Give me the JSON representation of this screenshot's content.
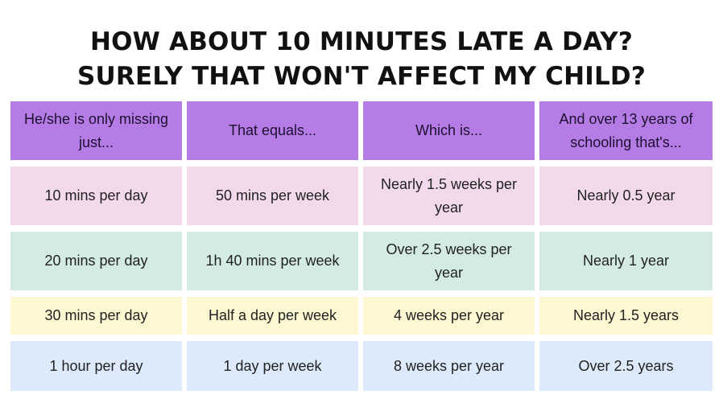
{
  "title": {
    "line1": "HOW ABOUT 10 MINUTES LATE A DAY?",
    "line2": "SURELY THAT WON'T AFFECT MY CHILD?"
  },
  "table": {
    "headers": [
      "He/she is only missing just...",
      "That equals...",
      "Which is...",
      "And over 13 years of schooling that's..."
    ],
    "rows": [
      [
        "10 mins per day",
        "50 mins per week",
        "Nearly 1.5 weeks per year",
        "Nearly 0.5 year"
      ],
      [
        "20 mins per day",
        "1h 40 mins per week",
        "Over 2.5 weeks per year",
        "Nearly 1 year"
      ],
      [
        "30 mins per day",
        "Half a day per week",
        "4 weeks per year",
        "Nearly 1.5 years"
      ],
      [
        "1 hour per day",
        "1 day per week",
        "8 weeks per year",
        "Over 2.5 years"
      ]
    ]
  },
  "colors": {
    "header_bg": "#b67ce6",
    "row1_bg": "#f2d9ec",
    "row2_bg": "#d3ebe3",
    "row3_bg": "#fdf7d2",
    "row4_bg": "#ddeafb"
  }
}
